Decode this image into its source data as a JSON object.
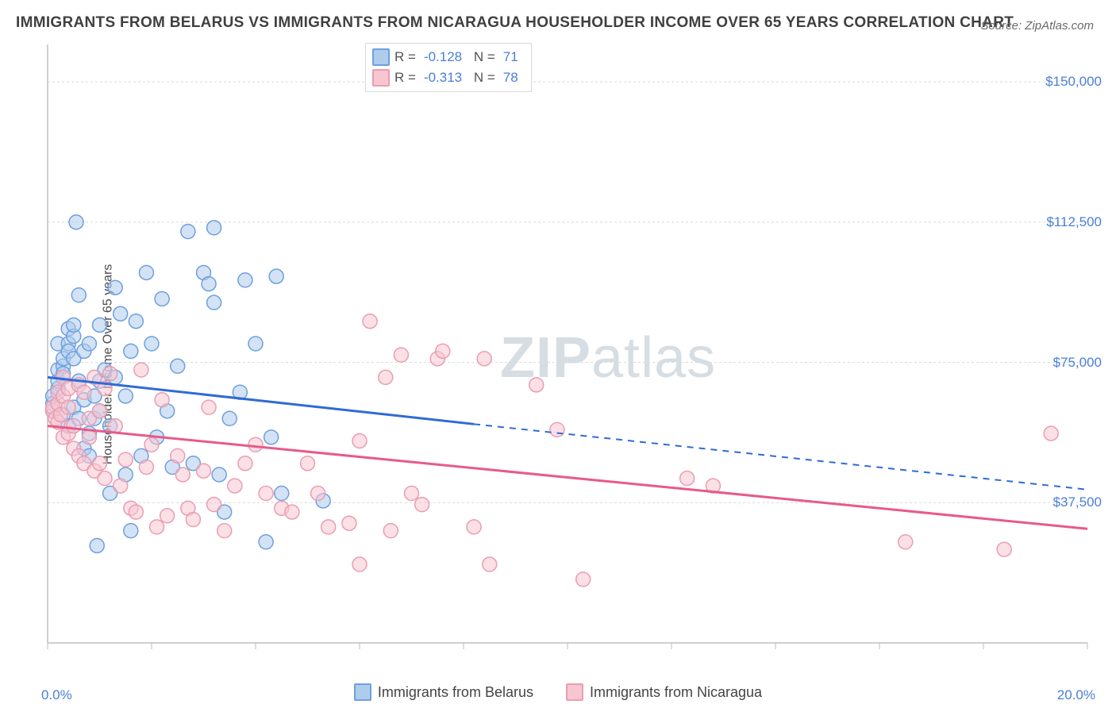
{
  "source_label": "Source: ZipAtlas.com",
  "title": "IMMIGRANTS FROM BELARUS VS IMMIGRANTS FROM NICARAGUA HOUSEHOLDER INCOME OVER 65 YEARS CORRELATION CHART",
  "ylabel": "Householder Income Over 65 years",
  "chart": {
    "type": "scatter",
    "background_color": "#ffffff",
    "grid_color": "#d9d9d9",
    "axis_color": "#bfbfbf",
    "text_color_axis": "#4a7fd6",
    "xlim": [
      0,
      20
    ],
    "ylim": [
      0,
      160000
    ],
    "ygrid_values": [
      37500,
      75000,
      112500,
      150000
    ],
    "ygrid_labels": [
      "$37,500",
      "$75,000",
      "$112,500",
      "$150,000"
    ],
    "xtick_left": "0.0%",
    "xtick_right": "20.0%",
    "xtick_positions": [
      0,
      2,
      4,
      6,
      8,
      10,
      12,
      14,
      16,
      18,
      20
    ],
    "marker_radius": 9,
    "marker_stroke_width": 1.5,
    "regression_line_width": 3,
    "series": [
      {
        "name": "Immigrants from Belarus",
        "fill": "#aeccec",
        "stroke": "#6da0de",
        "fill_opacity": 0.55,
        "R": "-0.128",
        "N": "71",
        "regression": {
          "x1": 0,
          "y1": 71000,
          "x2": 8.2,
          "y2": 58500,
          "color": "#2e6bd6",
          "extend_to_x": 20,
          "extend_y": 41000
        },
        "data": [
          [
            0.1,
            64000
          ],
          [
            0.1,
            66000
          ],
          [
            0.1,
            62000
          ],
          [
            0.2,
            68000
          ],
          [
            0.2,
            70000
          ],
          [
            0.2,
            80000
          ],
          [
            0.2,
            73000
          ],
          [
            0.3,
            74000
          ],
          [
            0.3,
            72000
          ],
          [
            0.3,
            76000
          ],
          [
            0.3,
            61000
          ],
          [
            0.4,
            84000
          ],
          [
            0.4,
            80000
          ],
          [
            0.4,
            78000
          ],
          [
            0.4,
            58000
          ],
          [
            0.5,
            82000
          ],
          [
            0.5,
            85000
          ],
          [
            0.5,
            76000
          ],
          [
            0.5,
            63000
          ],
          [
            0.55,
            112500
          ],
          [
            0.6,
            60000
          ],
          [
            0.6,
            70000
          ],
          [
            0.6,
            93000
          ],
          [
            0.7,
            52000
          ],
          [
            0.7,
            65000
          ],
          [
            0.7,
            78000
          ],
          [
            0.8,
            80000
          ],
          [
            0.8,
            56000
          ],
          [
            0.8,
            50000
          ],
          [
            0.9,
            66000
          ],
          [
            0.9,
            60000
          ],
          [
            0.95,
            26000
          ],
          [
            1.0,
            70000
          ],
          [
            1.0,
            85000
          ],
          [
            1.0,
            62000
          ],
          [
            1.1,
            73000
          ],
          [
            1.2,
            40000
          ],
          [
            1.2,
            58000
          ],
          [
            1.3,
            95000
          ],
          [
            1.3,
            71000
          ],
          [
            1.4,
            88000
          ],
          [
            1.5,
            45000
          ],
          [
            1.5,
            66000
          ],
          [
            1.6,
            30000
          ],
          [
            1.6,
            78000
          ],
          [
            1.7,
            86000
          ],
          [
            1.8,
            50000
          ],
          [
            1.9,
            99000
          ],
          [
            2.0,
            80000
          ],
          [
            2.1,
            55000
          ],
          [
            2.2,
            92000
          ],
          [
            2.3,
            62000
          ],
          [
            2.4,
            47000
          ],
          [
            2.5,
            74000
          ],
          [
            2.7,
            110000
          ],
          [
            2.8,
            48000
          ],
          [
            3.0,
            99000
          ],
          [
            3.1,
            96000
          ],
          [
            3.2,
            111000
          ],
          [
            3.2,
            91000
          ],
          [
            3.3,
            45000
          ],
          [
            3.4,
            35000
          ],
          [
            3.5,
            60000
          ],
          [
            3.7,
            67000
          ],
          [
            3.8,
            97000
          ],
          [
            4.0,
            80000
          ],
          [
            4.2,
            27000
          ],
          [
            4.3,
            55000
          ],
          [
            4.4,
            98000
          ],
          [
            4.5,
            40000
          ],
          [
            5.3,
            38000
          ]
        ]
      },
      {
        "name": "Immigrants from Nicaragua",
        "fill": "#f7c6d1",
        "stroke": "#ea9db2",
        "fill_opacity": 0.55,
        "R": "-0.313",
        "N": "78",
        "regression": {
          "x1": 0,
          "y1": 58000,
          "x2": 20,
          "y2": 30500,
          "color": "#e75a8a"
        },
        "data": [
          [
            0.1,
            62000
          ],
          [
            0.1,
            63000
          ],
          [
            0.15,
            60000
          ],
          [
            0.2,
            59000
          ],
          [
            0.2,
            64000
          ],
          [
            0.2,
            67000
          ],
          [
            0.25,
            61000
          ],
          [
            0.3,
            55000
          ],
          [
            0.3,
            66000
          ],
          [
            0.3,
            71000
          ],
          [
            0.4,
            68000
          ],
          [
            0.4,
            56000
          ],
          [
            0.4,
            63000
          ],
          [
            0.5,
            58000
          ],
          [
            0.5,
            52000
          ],
          [
            0.6,
            50000
          ],
          [
            0.6,
            69000
          ],
          [
            0.7,
            67000
          ],
          [
            0.7,
            48000
          ],
          [
            0.8,
            60000
          ],
          [
            0.8,
            55000
          ],
          [
            0.9,
            46000
          ],
          [
            0.9,
            71000
          ],
          [
            1.0,
            62000
          ],
          [
            1.0,
            48000
          ],
          [
            1.1,
            44000
          ],
          [
            1.1,
            68000
          ],
          [
            1.2,
            72000
          ],
          [
            1.3,
            58000
          ],
          [
            1.4,
            42000
          ],
          [
            1.5,
            49000
          ],
          [
            1.6,
            36000
          ],
          [
            1.7,
            35000
          ],
          [
            1.8,
            73000
          ],
          [
            1.9,
            47000
          ],
          [
            2.0,
            53000
          ],
          [
            2.1,
            31000
          ],
          [
            2.2,
            65000
          ],
          [
            2.3,
            34000
          ],
          [
            2.5,
            50000
          ],
          [
            2.6,
            45000
          ],
          [
            2.7,
            36000
          ],
          [
            2.8,
            33000
          ],
          [
            3.0,
            46000
          ],
          [
            3.1,
            63000
          ],
          [
            3.2,
            37000
          ],
          [
            3.4,
            30000
          ],
          [
            3.6,
            42000
          ],
          [
            3.8,
            48000
          ],
          [
            4.0,
            53000
          ],
          [
            4.2,
            40000
          ],
          [
            4.5,
            36000
          ],
          [
            4.7,
            35000
          ],
          [
            5.0,
            48000
          ],
          [
            5.2,
            40000
          ],
          [
            5.4,
            31000
          ],
          [
            5.8,
            32000
          ],
          [
            6.0,
            54000
          ],
          [
            6.0,
            21000
          ],
          [
            6.2,
            86000
          ],
          [
            6.5,
            71000
          ],
          [
            6.6,
            30000
          ],
          [
            6.8,
            77000
          ],
          [
            7.0,
            40000
          ],
          [
            7.2,
            37000
          ],
          [
            7.5,
            76000
          ],
          [
            7.6,
            78000
          ],
          [
            8.2,
            31000
          ],
          [
            8.4,
            76000
          ],
          [
            8.5,
            21000
          ],
          [
            9.4,
            69000
          ],
          [
            9.8,
            57000
          ],
          [
            10.3,
            17000
          ],
          [
            12.3,
            44000
          ],
          [
            12.8,
            42000
          ],
          [
            16.5,
            27000
          ],
          [
            18.4,
            25000
          ],
          [
            19.3,
            56000
          ]
        ]
      }
    ],
    "legend_axis_labels": [
      "Immigrants from Belarus",
      "Immigrants from Nicaragua"
    ],
    "watermark_parts": [
      "ZIP",
      "atlas"
    ]
  }
}
